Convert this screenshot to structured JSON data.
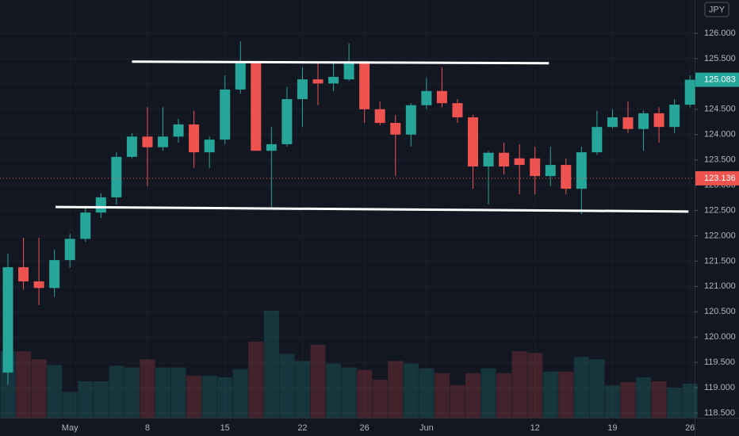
{
  "chart_data": {
    "type": "candlestick",
    "currency": "JPY",
    "categories": [
      null,
      null,
      null,
      null,
      "May",
      null,
      null,
      null,
      null,
      "8",
      null,
      null,
      null,
      null,
      "15",
      null,
      null,
      null,
      null,
      "22",
      null,
      null,
      null,
      "26",
      null,
      null,
      null,
      "Jun",
      null,
      null,
      null,
      null,
      null,
      null,
      "12",
      null,
      null,
      null,
      null,
      "19",
      null,
      null,
      null,
      null,
      "26"
    ],
    "open": [
      119.3,
      121.38,
      121.1,
      120.97,
      121.52,
      121.94,
      122.46,
      122.76,
      123.56,
      123.96,
      123.75,
      123.96,
      124.2,
      123.65,
      123.9,
      124.89,
      125.41,
      123.68,
      123.81,
      124.7,
      125.09,
      125.01,
      125.09,
      125.41,
      124.5,
      124.23,
      124.0,
      124.58,
      124.86,
      124.62,
      124.34,
      123.37,
      123.64,
      123.53,
      123.53,
      123.18,
      123.4,
      122.93,
      123.65,
      124.15,
      124.34,
      124.11,
      124.42,
      124.15,
      124.59
    ],
    "high": [
      121.65,
      121.96,
      121.96,
      121.73,
      122.04,
      122.56,
      122.84,
      123.65,
      124.03,
      124.54,
      124.54,
      124.31,
      124.47,
      123.96,
      125.17,
      125.84,
      125.44,
      124.15,
      124.94,
      125.33,
      125.41,
      125.44,
      125.8,
      125.44,
      124.65,
      124.39,
      124.62,
      125.12,
      125.33,
      124.7,
      124.39,
      123.68,
      123.84,
      123.81,
      123.76,
      123.76,
      123.53,
      123.76,
      124.47,
      124.5,
      124.65,
      124.47,
      124.54,
      124.7,
      125.17
    ],
    "low": [
      119.06,
      120.94,
      120.63,
      120.79,
      121.37,
      121.88,
      122.35,
      122.62,
      123.53,
      122.98,
      123.68,
      123.84,
      123.34,
      123.34,
      123.81,
      124.81,
      123.68,
      122.56,
      123.76,
      124.15,
      124.58,
      124.86,
      125.06,
      124.23,
      124.18,
      123.18,
      123.76,
      124.5,
      124.54,
      124.23,
      122.93,
      122.62,
      123.21,
      122.82,
      122.82,
      122.98,
      122.82,
      122.43,
      123.6,
      124.12,
      124.03,
      123.68,
      123.84,
      124.03,
      124.54
    ],
    "close": [
      121.38,
      121.1,
      120.97,
      121.52,
      121.94,
      122.46,
      122.76,
      123.56,
      123.96,
      123.75,
      123.96,
      124.2,
      123.65,
      123.9,
      124.89,
      125.41,
      123.68,
      123.81,
      124.7,
      125.09,
      125.01,
      125.14,
      125.41,
      124.5,
      124.23,
      124.0,
      124.58,
      124.86,
      124.62,
      124.34,
      123.37,
      123.64,
      123.37,
      123.4,
      123.18,
      123.4,
      122.93,
      123.65,
      124.15,
      124.34,
      124.11,
      124.42,
      124.15,
      124.59,
      125.083
    ],
    "volume": [
      82,
      82,
      72,
      65,
      32,
      45,
      45,
      64,
      62,
      72,
      62,
      62,
      52,
      52,
      50,
      60,
      94,
      132,
      79,
      70,
      90,
      67,
      62,
      59,
      47,
      70,
      67,
      61,
      55,
      40,
      55,
      61,
      55,
      82,
      80,
      57,
      57,
      75,
      72,
      40,
      44,
      50,
      45,
      37,
      42
    ],
    "up_color": "#26a69a",
    "down_color": "#ef5350",
    "ylim": [
      118.406,
      126.658
    ],
    "yticks": [
      {
        "value": 118.5,
        "label": "118.500"
      },
      {
        "value": 119,
        "label": "119.000"
      },
      {
        "value": 119.5,
        "label": "119.500"
      },
      {
        "value": 120,
        "label": "120.000"
      },
      {
        "value": 120.5,
        "label": "120.500"
      },
      {
        "value": 121,
        "label": "121.000"
      },
      {
        "value": 121.5,
        "label": "121.500"
      },
      {
        "value": 122,
        "label": "122.000"
      },
      {
        "value": 122.5,
        "label": "122.500"
      },
      {
        "value": 123,
        "label": "123.000"
      },
      {
        "value": 123.5,
        "label": "123.500"
      },
      {
        "value": 124,
        "label": "124.000"
      },
      {
        "value": 124.5,
        "label": "124.500"
      },
      {
        "value": 125,
        "label": "125.000"
      },
      {
        "value": 125.5,
        "label": "125.500"
      },
      {
        "value": 126,
        "label": "126.000"
      }
    ],
    "trendlines": [
      {
        "x": [
          8,
          34.9
        ],
        "y": [
          125.44,
          125.41
        ]
      },
      {
        "x": [
          3.07,
          43.9
        ],
        "y": [
          122.57,
          122.48
        ]
      }
    ],
    "last_price": {
      "value": 125.083,
      "label": "125.083"
    },
    "price_line": {
      "value": 123.136,
      "label": "123.136"
    },
    "grid": true
  }
}
